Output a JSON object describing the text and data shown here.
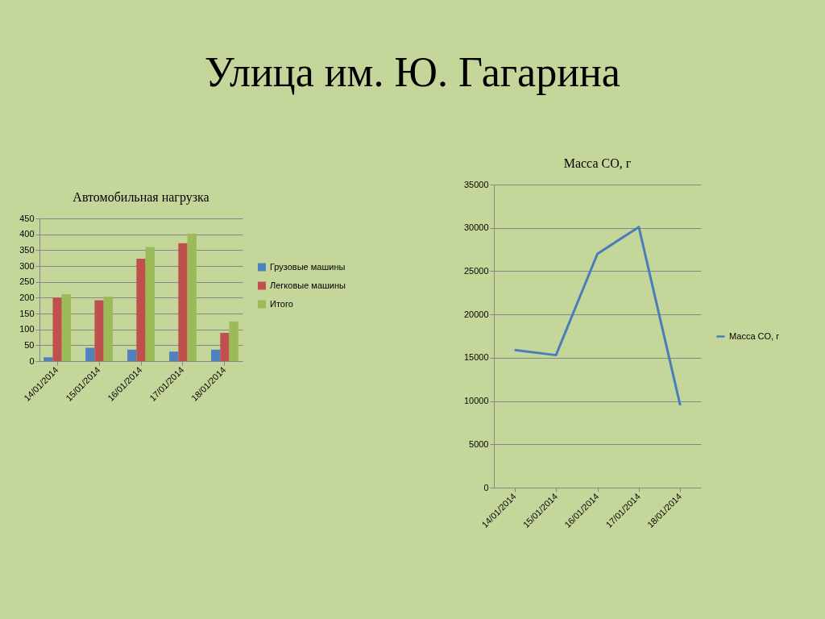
{
  "chart_data": [
    {
      "type": "other",
      "title": "Улица им. Ю. Гагарина"
    },
    {
      "type": "bar",
      "title": "Автомобильная нагрузка",
      "categories": [
        "14/01/2014",
        "15/01/2014",
        "16/01/2014",
        "17/01/2014",
        "18/01/2014"
      ],
      "series": [
        {
          "name": "Грузовые машины",
          "color": "#4f81bd",
          "values": [
            12,
            42,
            36,
            30,
            36
          ]
        },
        {
          "name": "Легковые машины",
          "color": "#c0504d",
          "values": [
            200,
            192,
            323,
            372,
            89
          ]
        },
        {
          "name": "Итого",
          "color": "#9bbb59",
          "values": [
            211,
            203,
            360,
            402,
            125
          ]
        }
      ],
      "ylim": [
        0,
        450
      ],
      "yticks": [
        0,
        50,
        100,
        150,
        200,
        250,
        300,
        350,
        400,
        450
      ],
      "grid": "y",
      "legend": "right"
    },
    {
      "type": "line",
      "title": "Масса CO, г",
      "categories": [
        "14/01/2014",
        "15/01/2014",
        "16/01/2014",
        "17/01/2014",
        "18/01/2014"
      ],
      "series": [
        {
          "name": "Масса CO, г",
          "color": "#4a7ebb",
          "values": [
            15900,
            15300,
            27000,
            30100,
            9500
          ]
        }
      ],
      "ylim": [
        0,
        35000
      ],
      "yticks": [
        0,
        5000,
        10000,
        15000,
        20000,
        25000,
        30000,
        35000
      ],
      "grid": "y",
      "legend": "right",
      "marker": "none"
    }
  ]
}
